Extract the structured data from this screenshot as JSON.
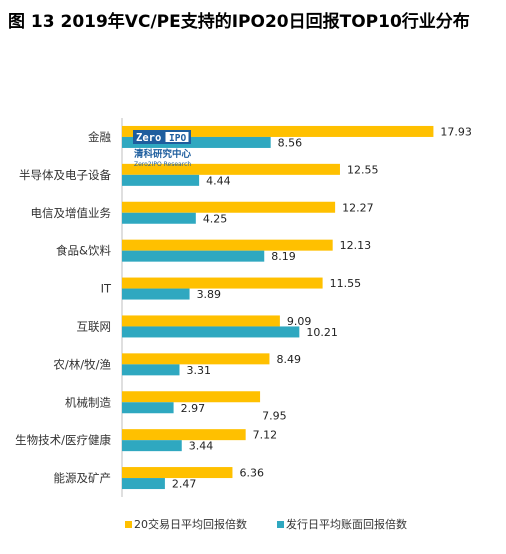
{
  "colors": {
    "series1": "#FFC000",
    "series2": "#2FA8C0",
    "axis": "#BFBFBF"
  },
  "watermark": {
    "brand_top": "Zero",
    "brand_box": "IPO",
    "brand_cn": "清科研究中心",
    "brand_en": "Zero2IPO Research"
  },
  "chart_data": {
    "type": "bar",
    "orientation": "horizontal",
    "title": "图 13 2019年VC/PE支持的IPO20日回报TOP10行业分布",
    "categories": [
      "金融",
      "半导体及电子设备",
      "电信及增值业务",
      "食品&饮料",
      "IT",
      "互联网",
      "农/林/牧/渔",
      "机械制造",
      "生物技术/医疗健康",
      "能源及矿产"
    ],
    "series": [
      {
        "name": "20交易日平均回报倍数",
        "values": [
          17.93,
          12.55,
          12.27,
          12.13,
          11.55,
          9.09,
          8.49,
          7.95,
          7.12,
          6.36
        ]
      },
      {
        "name": "发行日平均账面回报倍数",
        "values": [
          8.56,
          4.44,
          4.25,
          8.19,
          3.89,
          10.21,
          3.31,
          2.97,
          3.44,
          2.47
        ]
      }
    ],
    "value_labels": [
      [
        "17.93",
        "12.55",
        "12.27",
        "12.13",
        "11.55",
        "9.09",
        "8.49",
        "7.95",
        "7.12",
        "6.36"
      ],
      [
        "8.56",
        "4.44",
        "4.25",
        "8.19",
        "3.89",
        "10.21",
        "3.31",
        "2.97",
        "3.44",
        "2.47"
      ]
    ],
    "xlim": [
      0,
      19
    ],
    "grid": false,
    "legend_position": "bottom"
  }
}
